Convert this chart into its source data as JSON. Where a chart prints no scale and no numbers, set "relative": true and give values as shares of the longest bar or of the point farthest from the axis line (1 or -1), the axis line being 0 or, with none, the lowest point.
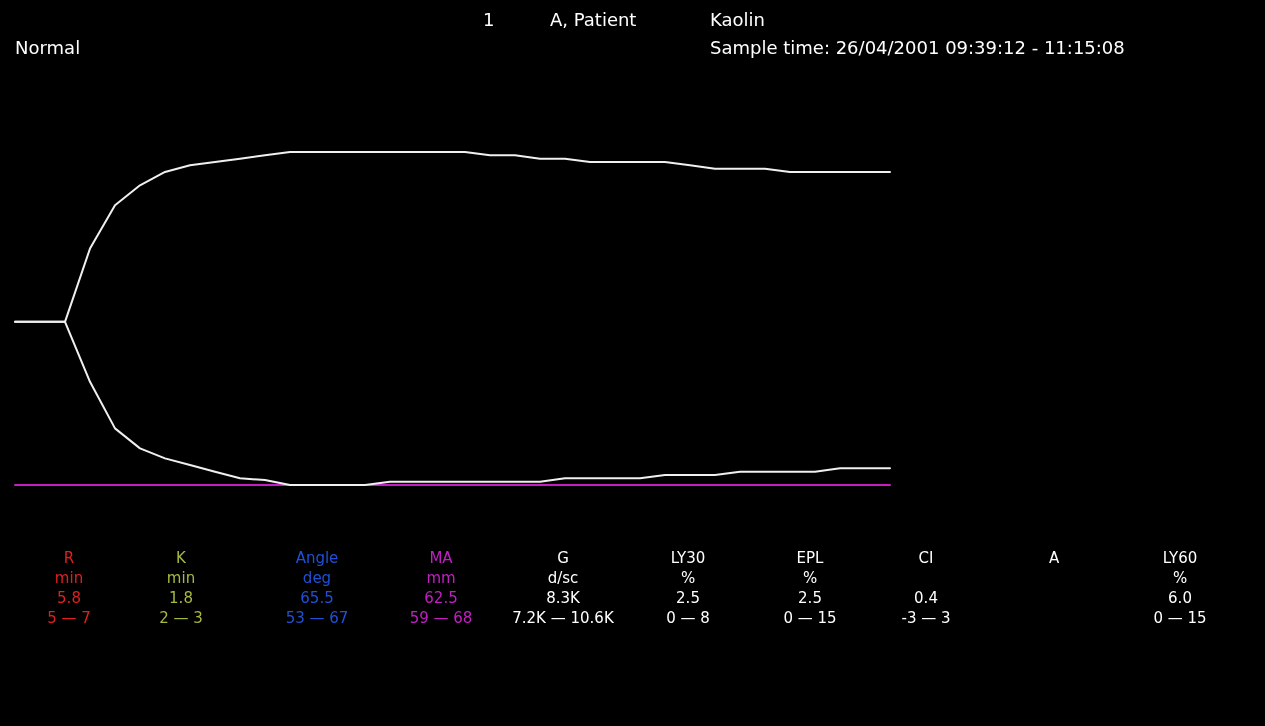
{
  "chart_data": {
    "type": "line",
    "relative": true,
    "categories": [
      null,
      null,
      null,
      null,
      null,
      null,
      null,
      null,
      null,
      null,
      null,
      null,
      null,
      null,
      null,
      null,
      null,
      null,
      null,
      null,
      null,
      null,
      null,
      null,
      null,
      null,
      null,
      null,
      null,
      null,
      null,
      null,
      null,
      null,
      null,
      null
    ],
    "series": [
      {
        "color": "#f0f0f0",
        "values": [
          0.49,
          0.49,
          0.49,
          0.71,
          0.84,
          0.9,
          0.94,
          0.96,
          0.97,
          0.98,
          0.99,
          1,
          1,
          1,
          1,
          1,
          1,
          1,
          1,
          0.99,
          0.99,
          0.98,
          0.98,
          0.97,
          0.97,
          0.97,
          0.97,
          0.96,
          0.95,
          0.95,
          0.95,
          0.94,
          0.94,
          0.94,
          0.94,
          0.94
        ]
      },
      {
        "color": "#f0f0f0",
        "values": [
          0.49,
          0.49,
          0.49,
          0.31,
          0.17,
          0.11,
          0.08,
          0.06,
          0.04,
          0.02,
          0.015,
          0,
          0,
          0,
          0,
          0.01,
          0.01,
          0.01,
          0.01,
          0.01,
          0.01,
          0.01,
          0.02,
          0.02,
          0.02,
          0.02,
          0.03,
          0.03,
          0.03,
          0.04,
          0.04,
          0.04,
          0.04,
          0.05,
          0.05,
          0.05
        ]
      }
    ],
    "marker": "none",
    "line_style": "solid",
    "grid": false,
    "annotations": [
      "Normal",
      "1",
      "A, Patient",
      "Kaolin",
      "Sample time: 26/04/2001 09:39:12 - 11:15:08",
      "R\nmin\n5.8\n5 — 7",
      "K\nmin\n1.8\n2 — 3",
      "Angle\ndeg\n65.5\n53 — 67",
      "MA\nmm\n62.5\n59 — 68",
      "G\nd/sc\n8.3K\n7.2K — 10.6K",
      "LY30\n%\n2.5\n0 — 8",
      "EPL\n%\n2.5\n0 — 15",
      "CI\n\n0.4\n-3 — 3",
      "A",
      "LY60\n%\n6.0\n0 — 15"
    ]
  }
}
